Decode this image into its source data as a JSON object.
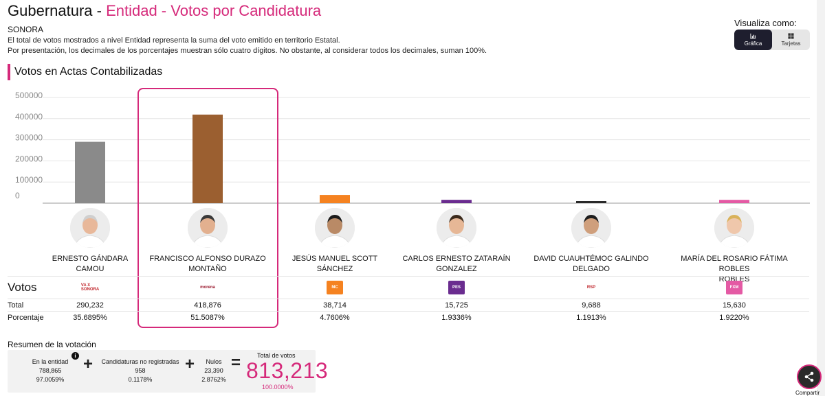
{
  "header": {
    "title_prefix": "Gubernatura - ",
    "title_highlight": "Entidad - Votos por Candidatura",
    "state": "SONORA",
    "note_1": "El total de votos mostrados a nivel Entidad representa la suma del voto emitido en territorio Estatal.",
    "note_2": "Por presentación, los decimales de los porcentajes muestran sólo cuatro dígitos. No obstante, al considerar todos los decimales, suman 100%."
  },
  "view_toggle": {
    "label": "Visualiza como:",
    "options": [
      {
        "label": "Gráfica",
        "icon": "bar-chart-icon",
        "active": true
      },
      {
        "label": "Tarjetas",
        "icon": "grid-icon",
        "active": false
      }
    ]
  },
  "section_title": "Votos en Actas Contabilizadas",
  "chart_data": {
    "type": "bar",
    "title": "Votos en Actas Contabilizadas",
    "ylim": [
      0,
      500000
    ],
    "yticks": [
      "500000",
      "400000",
      "300000",
      "200000",
      "100000",
      "0"
    ],
    "categories": [
      "ERNESTO GÁNDARA CAMOU",
      "FRANCISCO ALFONSO DURAZO MONTAÑO",
      "JESÚS MANUEL SCOTT SÁNCHEZ",
      "CARLOS ERNESTO ZATARAÍN GONZALEZ",
      "DAVID CUAUHTÉMOC GALINDO DELGADO",
      "MARÍA DEL ROSARIO FÁTIMA ROBLES ROBLES"
    ],
    "values": [
      290232,
      418876,
      38714,
      15725,
      9688,
      15630
    ],
    "colors": [
      "#8a8a8a",
      "#9b5f30",
      "#f58220",
      "#6a2c8f",
      "#2a2a2a",
      "#e45aa4"
    ],
    "grid": true
  },
  "candidates": [
    {
      "name_1": "ERNESTO GÁNDARA",
      "name_2": "CAMOU",
      "party_icon": "va-x-sonora-icon",
      "party_text": "VA X SONORA",
      "party_color": "#ffffff",
      "party_fg": "#c0272d",
      "total": "290,232",
      "pct": "35.6895%"
    },
    {
      "name_1": "FRANCISCO ALFONSO DURAZO",
      "name_2": "MONTAÑO",
      "party_icon": "morena-icon",
      "party_text": "morena",
      "party_color": "#ffffff",
      "party_fg": "#9b1b30",
      "total": "418,876",
      "pct": "51.5087%"
    },
    {
      "name_1": "JESÚS MANUEL SCOTT",
      "name_2": "SÁNCHEZ",
      "party_icon": "movimiento-ciudadano-icon",
      "party_text": "MC",
      "party_color": "#f58220",
      "party_fg": "#ffffff",
      "total": "38,714",
      "pct": "4.7606%"
    },
    {
      "name_1": "CARLOS ERNESTO ZATARAÍN",
      "name_2": "GONZALEZ",
      "party_icon": "pes-icon",
      "party_text": "PES",
      "party_color": "#6a2c8f",
      "party_fg": "#ffffff",
      "total": "15,725",
      "pct": "1.9336%"
    },
    {
      "name_1": "DAVID CUAUHTÉMOC GALINDO",
      "name_2": "DELGADO",
      "party_icon": "rsp-icon",
      "party_text": "RSP",
      "party_color": "#ffffff",
      "party_fg": "#c0272d",
      "total": "9,688",
      "pct": "1.1913%"
    },
    {
      "name_1": "MARÍA DEL ROSARIO FÁTIMA ROBLES",
      "name_2": "ROBLES",
      "party_icon": "fuerza-por-mexico-icon",
      "party_text": "FXM",
      "party_color": "#e45aa4",
      "party_fg": "#ffffff",
      "total": "15,630",
      "pct": "1.9220%"
    }
  ],
  "rows": {
    "votos": "Votos",
    "total": "Total",
    "porcentaje": "Porcentaje"
  },
  "summary": {
    "title": "Resumen de la votación",
    "entidad_label": "En la entidad",
    "entidad_votes": "788,865",
    "entidad_pct": "97.0059%",
    "no_reg_label": "Candidaturas no registradas",
    "no_reg_votes": "958",
    "no_reg_pct": "0.1178%",
    "nulos_label": "Nulos",
    "nulos_votes": "23,390",
    "nulos_pct": "2.8762%",
    "total_label": "Total de votos",
    "total_votes": "813,213",
    "total_pct": "100.0000%",
    "plus": "+",
    "equals": "=",
    "info": "i"
  },
  "share": {
    "label": "Compartir",
    "icon": "share-icon"
  }
}
